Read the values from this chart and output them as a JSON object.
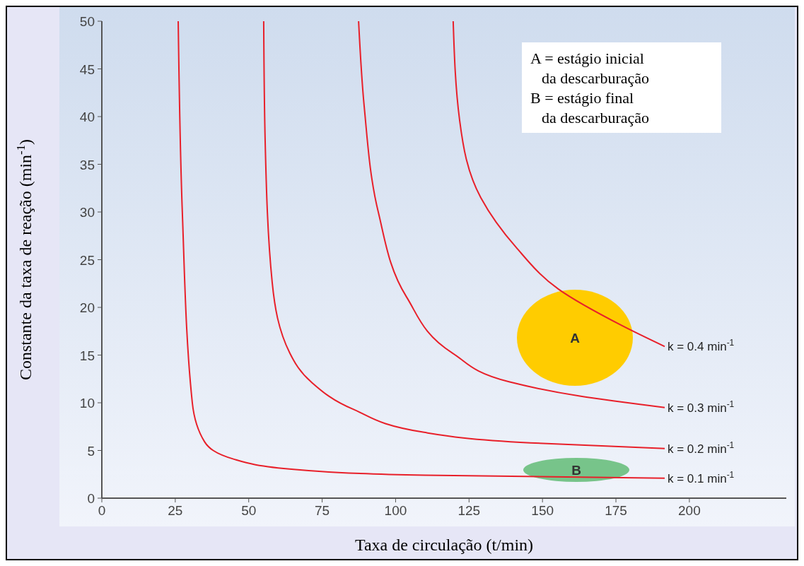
{
  "chart_data": {
    "type": "line",
    "xlabel": "Taxa de circulação  (t/min)",
    "ylabel": "Constante da taxa de reação (min$^{-1}$)",
    "xlim": [
      0,
      233
    ],
    "ylim": [
      0,
      50
    ],
    "xticks": [
      0,
      25,
      50,
      75,
      100,
      125,
      150,
      175,
      200
    ],
    "yticks": [
      0,
      5,
      10,
      15,
      20,
      25,
      30,
      35,
      40,
      45,
      50
    ],
    "grid": false,
    "marker": "none",
    "line_style": "solid",
    "series": [
      {
        "name": "k = 0.4 min$^{-1}$",
        "color": "#e8202a",
        "x": [
          119.6,
          121.8,
          129,
          141,
          155.5,
          177,
          191.6
        ],
        "values": [
          50,
          39.6,
          31.5,
          26.3,
          21.9,
          18.1,
          15.9
        ]
      },
      {
        "name": "k = 0.3 min$^{-1}$",
        "color": "#e8202a",
        "x": [
          87.4,
          89.3,
          94.1,
          103.7,
          119.4,
          138.6,
          162.7,
          191.6
        ],
        "values": [
          50,
          41.1,
          30,
          21.1,
          15.2,
          12.2,
          10.7,
          9.5
        ]
      },
      {
        "name": "k = 0.2 min$^{-1}$",
        "color": "#e8202a",
        "x": [
          55.1,
          55.6,
          58,
          64,
          71.2,
          85.7,
          109.7,
          145.8,
          191.6
        ],
        "values": [
          50,
          37.4,
          22.6,
          15.2,
          12.2,
          9.3,
          6.9,
          5.8,
          5.2
        ]
      },
      {
        "name": "k = 0.1 min$^{-1}$",
        "color": "#e8202a",
        "x": [
          26,
          27.4,
          30.8,
          35,
          44.8,
          66,
          110,
          191.6
        ],
        "values": [
          50,
          30,
          10,
          5.9,
          4.1,
          3,
          2.4,
          2.1
        ]
      }
    ],
    "annotations": [
      "A",
      "B",
      "A = estágio inicial",
      "da descarburação",
      "B = estágio final",
      "da descarburação"
    ]
  }
}
